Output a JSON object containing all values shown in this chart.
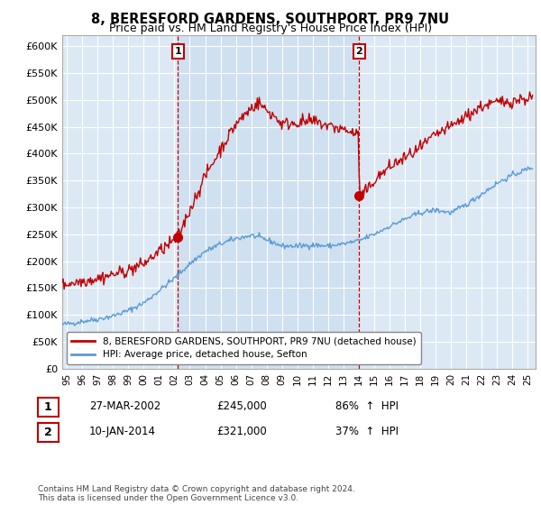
{
  "title": "8, BERESFORD GARDENS, SOUTHPORT, PR9 7NU",
  "subtitle": "Price paid vs. HM Land Registry's House Price Index (HPI)",
  "ylabel_ticks": [
    "£0",
    "£50K",
    "£100K",
    "£150K",
    "£200K",
    "£250K",
    "£300K",
    "£350K",
    "£400K",
    "£450K",
    "£500K",
    "£550K",
    "£600K"
  ],
  "ytick_vals": [
    0,
    50000,
    100000,
    150000,
    200000,
    250000,
    300000,
    350000,
    400000,
    450000,
    500000,
    550000,
    600000
  ],
  "ylim": [
    0,
    620000
  ],
  "sale1": {
    "date_num": 2002.23,
    "price": 245000,
    "label": "1",
    "date_str": "27-MAR-2002",
    "pct": "86%"
  },
  "sale2": {
    "date_num": 2014.03,
    "price": 321000,
    "label": "2",
    "date_str": "10-JAN-2014",
    "pct": "37%"
  },
  "hpi_color": "#5b9bd5",
  "price_color": "#c00000",
  "background_color": "#ffffff",
  "plot_bg_color": "#dce9f5",
  "grid_color": "#ffffff",
  "legend_label_price": "8, BERESFORD GARDENS, SOUTHPORT, PR9 7NU (detached house)",
  "legend_label_hpi": "HPI: Average price, detached house, Sefton",
  "footnote": "Contains HM Land Registry data © Crown copyright and database right 2024.\nThis data is licensed under the Open Government Licence v3.0.",
  "xmin": 1994.7,
  "xmax": 2025.5
}
